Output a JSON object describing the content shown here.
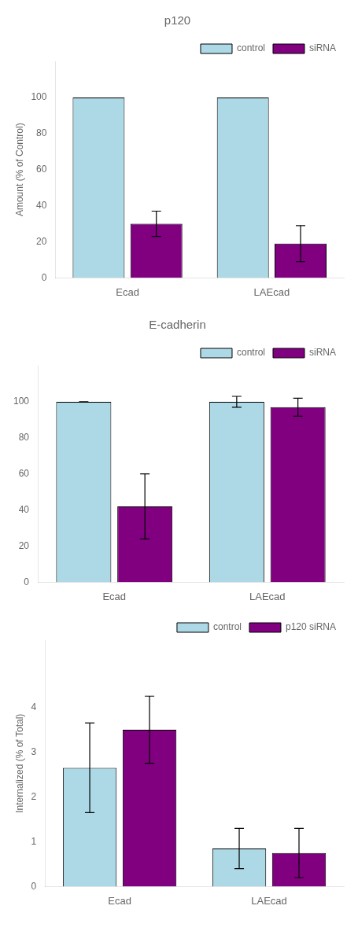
{
  "chart_data": [
    {
      "type": "bar",
      "title": "p120",
      "ylabel": "Amount (% of Control)",
      "categories": [
        "Ecad",
        "LAEcad"
      ],
      "series": [
        {
          "name": "control",
          "color": "#add8e6",
          "values": [
            100,
            100
          ]
        },
        {
          "name": "siRNA",
          "color": "#800080",
          "values": [
            30,
            19
          ],
          "errors": [
            7,
            10
          ]
        }
      ],
      "ylim": [
        0,
        120
      ],
      "yticks": [
        0,
        20,
        40,
        60,
        80,
        100
      ],
      "grid": false,
      "legend": "upper right"
    },
    {
      "type": "bar",
      "title": "E-cadherin",
      "categories": [
        "Ecad",
        "LAEcad"
      ],
      "series": [
        {
          "name": "control",
          "color": "#add8e6",
          "values": [
            100,
            100
          ],
          "errors": [
            0,
            3
          ]
        },
        {
          "name": "siRNA",
          "color": "#800080",
          "values": [
            42,
            97
          ],
          "errors": [
            18,
            5
          ]
        }
      ],
      "ylim": [
        0,
        120
      ],
      "yticks": [
        0,
        20,
        40,
        60,
        80,
        100
      ],
      "grid": false,
      "legend": "upper right"
    },
    {
      "type": "bar",
      "ylabel": "Internalized (% of Total)",
      "categories": [
        "Ecad",
        "LAEcad"
      ],
      "series": [
        {
          "name": "control",
          "color": "#add8e6",
          "values": [
            2.65,
            0.85
          ],
          "errors": [
            1.0,
            0.45
          ]
        },
        {
          "name": "p120 siRNA",
          "color": "#800080",
          "values": [
            3.5,
            0.75
          ],
          "errors": [
            0.75,
            0.55
          ]
        }
      ],
      "ylim": [
        0,
        5.5
      ],
      "yticks": [
        0,
        1,
        2,
        3,
        4
      ],
      "grid": false,
      "legend": "upper right"
    }
  ]
}
